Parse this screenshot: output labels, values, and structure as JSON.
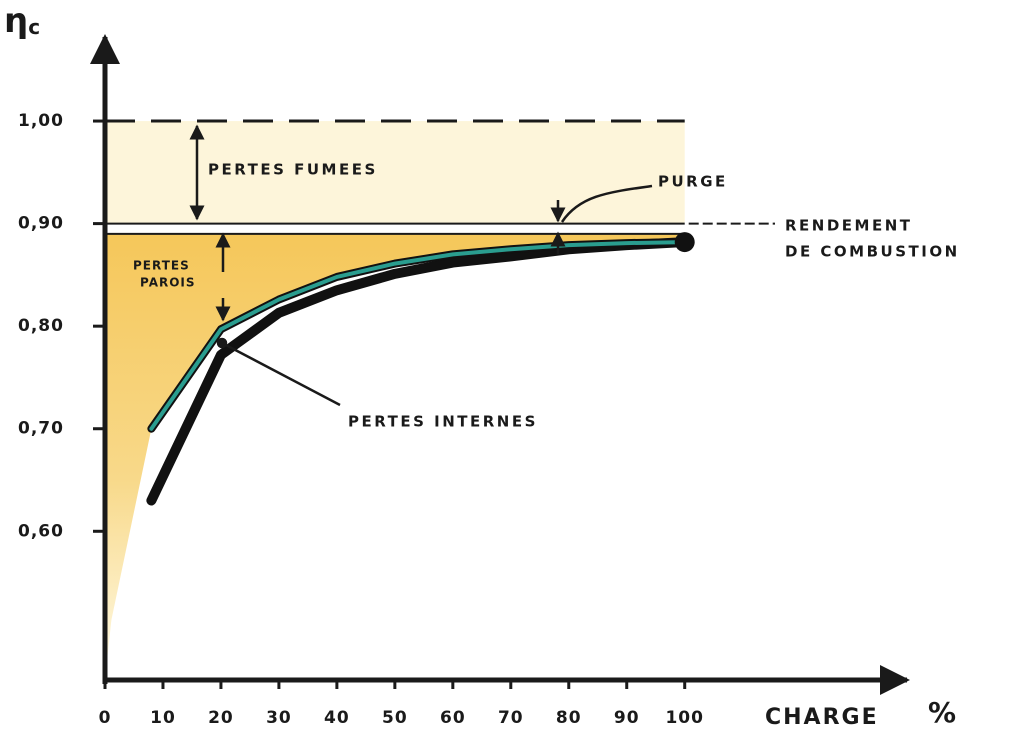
{
  "chart_data": {
    "type": "line",
    "y_label": {
      "symbol": "η",
      "subscript": "c"
    },
    "x_label": "CHARGE",
    "x_unit": "%",
    "x": [
      8,
      20,
      30,
      40,
      50,
      60,
      70,
      80,
      90,
      100
    ],
    "series": [
      {
        "name": "PERTES PAROIS",
        "color": "#2a9d8f",
        "values": [
          0.7,
          0.797,
          0.826,
          0.848,
          0.861,
          0.87,
          0.875,
          0.879,
          0.881,
          0.882
        ]
      },
      {
        "name": "PERTES INTERNES",
        "color": "#111111",
        "values": [
          0.63,
          0.772,
          0.813,
          0.835,
          0.851,
          0.862,
          0.868,
          0.875,
          0.879,
          0.882
        ]
      }
    ],
    "xlim": [
      0,
      138
    ],
    "ylim": [
      0.455,
      1.08
    ],
    "xticks": [
      0,
      10,
      20,
      30,
      40,
      50,
      60,
      70,
      80,
      90,
      100
    ],
    "yticks": [
      {
        "value": 0.6,
        "label": "0,60"
      },
      {
        "value": 0.7,
        "label": "0,70"
      },
      {
        "value": 0.8,
        "label": "0,80"
      },
      {
        "value": 0.9,
        "label": "0,90"
      },
      {
        "value": 1.0,
        "label": "1,00"
      }
    ],
    "hlines": [
      {
        "value": 1.0,
        "style": "dashed"
      },
      {
        "value": 0.9,
        "style": "solid"
      },
      {
        "value": 0.89,
        "style": "solid"
      }
    ],
    "annotations": {
      "fumees": "PERTES FUMEES",
      "purge": "PURGE",
      "rendement": [
        "RENDEMENT",
        "DE COMBUSTION"
      ],
      "parois": [
        "PERTES",
        "PAROIS"
      ],
      "internes": "PERTES INTERNES"
    }
  }
}
